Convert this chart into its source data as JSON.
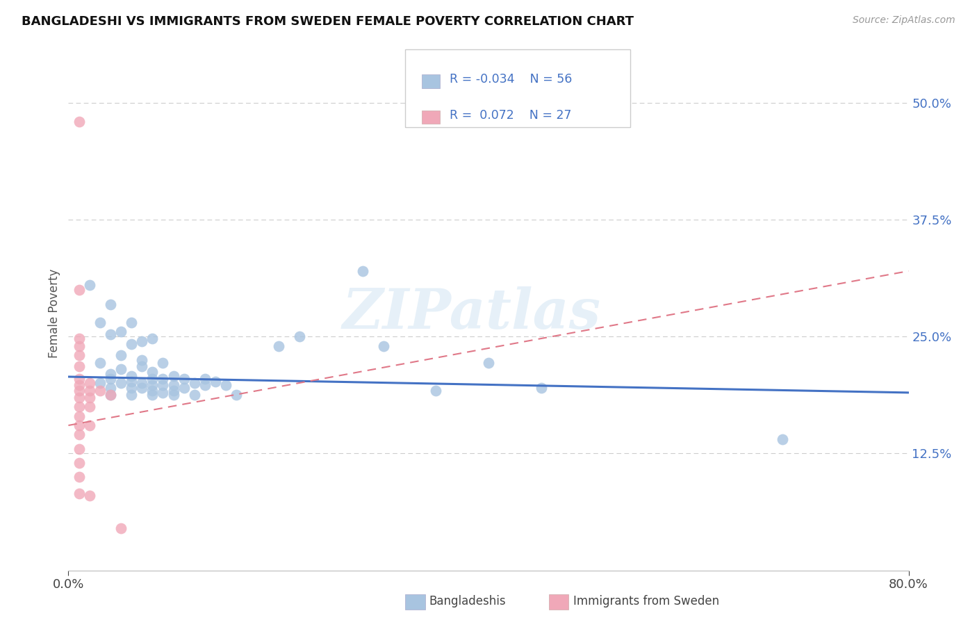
{
  "title": "BANGLADESHI VS IMMIGRANTS FROM SWEDEN FEMALE POVERTY CORRELATION CHART",
  "source": "Source: ZipAtlas.com",
  "ylabel": "Female Poverty",
  "ytick_values": [
    0.125,
    0.25,
    0.375,
    0.5
  ],
  "xlim": [
    0.0,
    0.8
  ],
  "ylim": [
    0.0,
    0.55
  ],
  "legend_labels": [
    "Bangladeshis",
    "Immigrants from Sweden"
  ],
  "r1": -0.034,
  "n1": 56,
  "r2": 0.072,
  "n2": 27,
  "color_blue": "#a8c4e0",
  "color_pink": "#f0a8b8",
  "line_blue": "#4472c4",
  "line_pink": "#e07888",
  "watermark": "ZIPatlas",
  "blue_line": [
    [
      0.0,
      0.207
    ],
    [
      0.8,
      0.19
    ]
  ],
  "pink_line": [
    [
      0.0,
      0.155
    ],
    [
      0.8,
      0.32
    ]
  ],
  "blue_dots": [
    [
      0.02,
      0.305
    ],
    [
      0.04,
      0.284
    ],
    [
      0.06,
      0.265
    ],
    [
      0.03,
      0.265
    ],
    [
      0.05,
      0.255
    ],
    [
      0.07,
      0.245
    ],
    [
      0.04,
      0.252
    ],
    [
      0.06,
      0.242
    ],
    [
      0.08,
      0.248
    ],
    [
      0.05,
      0.23
    ],
    [
      0.07,
      0.225
    ],
    [
      0.09,
      0.222
    ],
    [
      0.03,
      0.222
    ],
    [
      0.05,
      0.215
    ],
    [
      0.07,
      0.218
    ],
    [
      0.04,
      0.21
    ],
    [
      0.06,
      0.208
    ],
    [
      0.08,
      0.212
    ],
    [
      0.04,
      0.205
    ],
    [
      0.06,
      0.202
    ],
    [
      0.08,
      0.205
    ],
    [
      0.09,
      0.205
    ],
    [
      0.1,
      0.208
    ],
    [
      0.11,
      0.205
    ],
    [
      0.03,
      0.2
    ],
    [
      0.05,
      0.2
    ],
    [
      0.07,
      0.2
    ],
    [
      0.08,
      0.198
    ],
    [
      0.09,
      0.198
    ],
    [
      0.1,
      0.198
    ],
    [
      0.12,
      0.2
    ],
    [
      0.13,
      0.205
    ],
    [
      0.14,
      0.202
    ],
    [
      0.04,
      0.195
    ],
    [
      0.06,
      0.195
    ],
    [
      0.07,
      0.195
    ],
    [
      0.08,
      0.192
    ],
    [
      0.09,
      0.19
    ],
    [
      0.1,
      0.192
    ],
    [
      0.11,
      0.195
    ],
    [
      0.13,
      0.198
    ],
    [
      0.15,
      0.198
    ],
    [
      0.04,
      0.188
    ],
    [
      0.06,
      0.188
    ],
    [
      0.08,
      0.188
    ],
    [
      0.1,
      0.188
    ],
    [
      0.12,
      0.188
    ],
    [
      0.16,
      0.188
    ],
    [
      0.2,
      0.24
    ],
    [
      0.22,
      0.25
    ],
    [
      0.3,
      0.24
    ],
    [
      0.28,
      0.32
    ],
    [
      0.35,
      0.192
    ],
    [
      0.4,
      0.222
    ],
    [
      0.45,
      0.195
    ],
    [
      0.68,
      0.14
    ]
  ],
  "pink_dots": [
    [
      0.01,
      0.48
    ],
    [
      0.01,
      0.3
    ],
    [
      0.01,
      0.248
    ],
    [
      0.01,
      0.24
    ],
    [
      0.01,
      0.23
    ],
    [
      0.01,
      0.218
    ],
    [
      0.01,
      0.205
    ],
    [
      0.01,
      0.198
    ],
    [
      0.01,
      0.192
    ],
    [
      0.01,
      0.185
    ],
    [
      0.01,
      0.175
    ],
    [
      0.01,
      0.165
    ],
    [
      0.01,
      0.155
    ],
    [
      0.01,
      0.145
    ],
    [
      0.01,
      0.13
    ],
    [
      0.01,
      0.115
    ],
    [
      0.01,
      0.1
    ],
    [
      0.01,
      0.082
    ],
    [
      0.02,
      0.2
    ],
    [
      0.02,
      0.192
    ],
    [
      0.02,
      0.185
    ],
    [
      0.02,
      0.175
    ],
    [
      0.02,
      0.155
    ],
    [
      0.02,
      0.08
    ],
    [
      0.03,
      0.192
    ],
    [
      0.04,
      0.188
    ],
    [
      0.05,
      0.045
    ]
  ]
}
